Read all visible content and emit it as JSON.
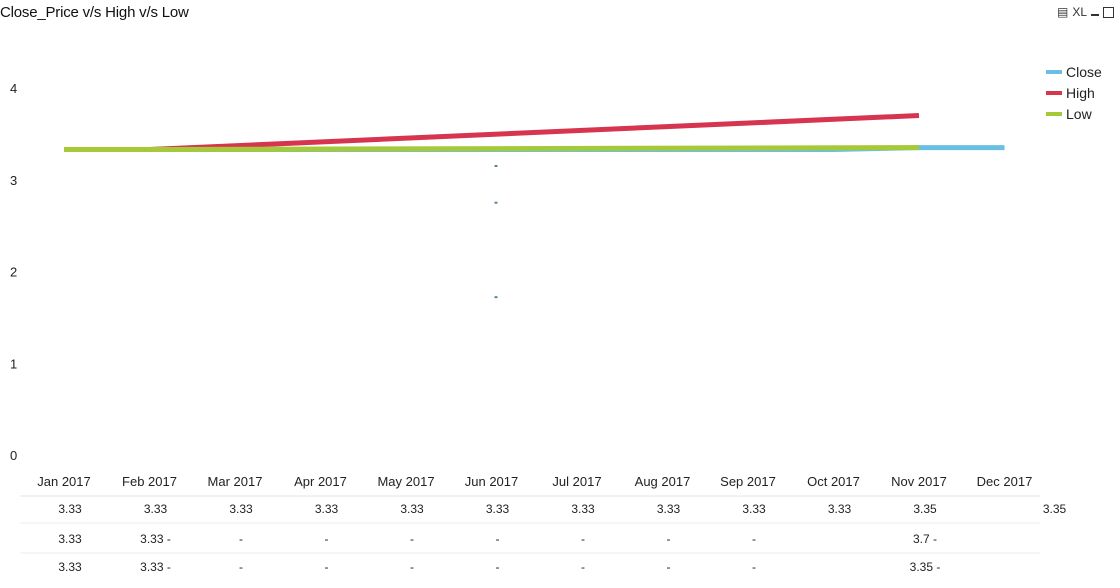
{
  "window": {
    "title": "Close_Price v/s High v/s Low",
    "controls": {
      "export_icon": "export-icon",
      "xl_label": "XL",
      "minimize_icon": "minimize-icon",
      "maximize_icon": "maximize-icon"
    }
  },
  "chart_data": {
    "type": "line",
    "title": "Close_Price v/s High v/s Low",
    "xlabel": "",
    "ylabel": "",
    "categories": [
      "Jan 2017",
      "Feb 2017",
      "Mar 2017",
      "Apr 2017",
      "May 2017",
      "Jun 2017",
      "Jul 2017",
      "Aug 2017",
      "Sep 2017",
      "Oct 2017",
      "Nov 2017",
      "Dec 2017"
    ],
    "ylim": [
      0,
      4.4
    ],
    "yticks": [
      "0",
      "1",
      "2",
      "3",
      "4"
    ],
    "grid": false,
    "legend_position": "top-right",
    "series": [
      {
        "name": "Close",
        "color": "#6bbfe2",
        "values": [
          3.33,
          3.33,
          3.33,
          3.33,
          3.33,
          3.33,
          3.33,
          3.33,
          3.33,
          3.33,
          3.35,
          3.35
        ]
      },
      {
        "name": "High",
        "color": "#d7344f",
        "values": [
          3.33,
          3.33,
          null,
          null,
          null,
          null,
          null,
          null,
          null,
          null,
          3.7,
          null
        ]
      },
      {
        "name": "Low",
        "color": "#a6c93a",
        "values": [
          3.33,
          3.33,
          null,
          null,
          null,
          null,
          null,
          null,
          null,
          null,
          3.35,
          null
        ]
      }
    ],
    "table_rows": [
      [
        "3.33",
        "3.33",
        "3.33",
        "3.33",
        "3.33",
        "3.33",
        "3.33",
        "3.33",
        "3.33",
        "3.33",
        "3.35",
        "3.35"
      ],
      [
        "3.33",
        "3.33 -",
        "-",
        "-",
        "-",
        "-",
        "-",
        "-",
        "-",
        "",
        "3.7 -",
        ""
      ],
      [
        "3.33",
        "3.33 -",
        "-",
        "-",
        "-",
        "-",
        "-",
        "-",
        "-",
        "",
        "3.35 -",
        ""
      ]
    ],
    "stray_marks": [
      {
        "x": "Jun 2017",
        "y": 3.15
      },
      {
        "x": "Jun 2017",
        "y": 2.75
      },
      {
        "x": "Jun 2017",
        "y": 1.72
      }
    ]
  }
}
